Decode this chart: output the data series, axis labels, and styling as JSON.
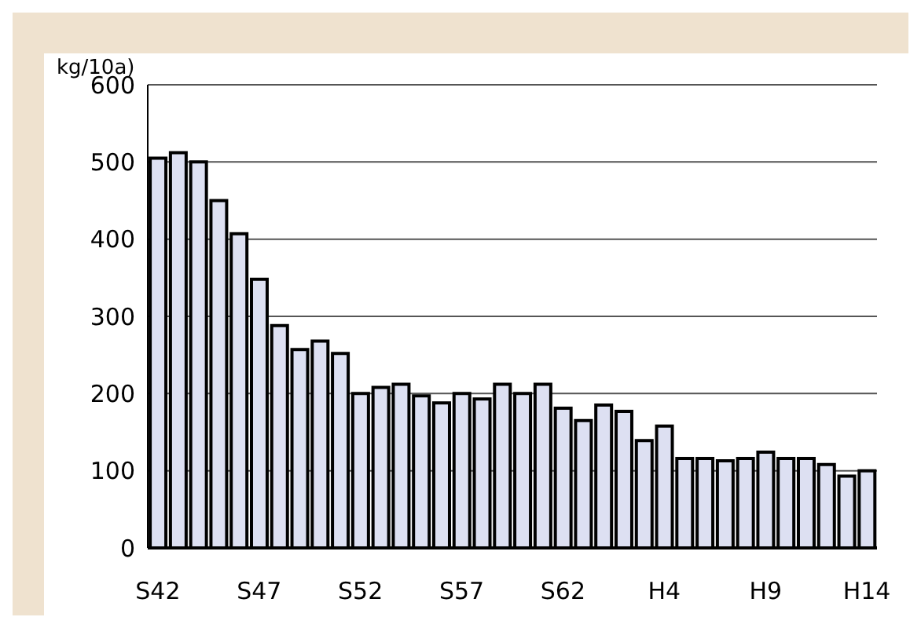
{
  "chart_data": {
    "type": "bar",
    "ylabel": "kg/10a)",
    "categories": [
      "S42",
      null,
      null,
      null,
      null,
      "S47",
      null,
      null,
      null,
      null,
      "S52",
      null,
      null,
      null,
      null,
      "S57",
      null,
      null,
      null,
      null,
      "S62",
      null,
      null,
      null,
      null,
      "H4",
      null,
      null,
      null,
      null,
      "H9",
      null,
      null,
      null,
      null,
      "H14"
    ],
    "values": [
      505,
      512,
      500,
      450,
      407,
      348,
      288,
      257,
      268,
      252,
      200,
      208,
      212,
      197,
      188,
      200,
      193,
      212,
      200,
      212,
      181,
      165,
      185,
      177,
      139,
      158,
      116,
      116,
      113,
      116,
      124,
      116,
      116,
      108,
      93,
      100
    ],
    "color": "#dde0f2",
    "ylim": [
      0,
      600
    ],
    "yticks": [
      0,
      100,
      200,
      300,
      400,
      500,
      600
    ],
    "grid": "y"
  }
}
